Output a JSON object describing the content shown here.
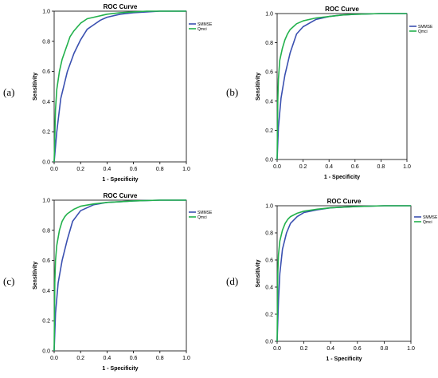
{
  "chart_data": [
    {
      "panel_label": "(a)",
      "type": "line",
      "title": "ROC Curve",
      "xlabel": "1 - Specificity",
      "ylabel": "Sensitivity",
      "xlim": [
        0.0,
        1.0
      ],
      "ylim": [
        0.0,
        1.0
      ],
      "x_ticks": [
        "0.0",
        "0.2",
        "0.4",
        "0.6",
        "0.8",
        "1.0"
      ],
      "y_ticks": [
        "0.0",
        "0.2",
        "0.4",
        "0.6",
        "0.8",
        "1.0"
      ],
      "legend_position": "top-right",
      "series": [
        {
          "name": "SMMSE",
          "color": "#3a50b0",
          "x": [
            0.0,
            0.02,
            0.05,
            0.1,
            0.15,
            0.2,
            0.25,
            0.3,
            0.35,
            0.4,
            0.5,
            0.6,
            0.7,
            0.8,
            1.0
          ],
          "y": [
            0.0,
            0.2,
            0.42,
            0.6,
            0.72,
            0.81,
            0.88,
            0.91,
            0.94,
            0.96,
            0.98,
            0.99,
            0.995,
            1.0,
            1.0
          ]
        },
        {
          "name": "Qmci",
          "color": "#22b14c",
          "x": [
            0.0,
            0.01,
            0.02,
            0.04,
            0.06,
            0.08,
            0.1,
            0.12,
            0.15,
            0.2,
            0.25,
            0.3,
            0.4,
            0.5,
            0.6,
            0.7,
            1.0
          ],
          "y": [
            0.0,
            0.35,
            0.48,
            0.6,
            0.68,
            0.73,
            0.78,
            0.83,
            0.87,
            0.92,
            0.95,
            0.96,
            0.98,
            0.99,
            0.995,
            1.0,
            1.0
          ]
        }
      ]
    },
    {
      "panel_label": "(b)",
      "type": "line",
      "title": "ROC Curve",
      "xlabel": "1 - Specificity",
      "ylabel": "Sensitivity",
      "xlim": [
        0.0,
        1.0
      ],
      "ylim": [
        0.0,
        1.0
      ],
      "x_ticks": [
        "0.0",
        "0.2",
        "0.4",
        "0.6",
        "0.8",
        "1.0"
      ],
      "y_ticks": [
        "0.0",
        "0.2",
        "0.4",
        "0.6",
        "0.8",
        "1.0"
      ],
      "legend_position": "top-right",
      "series": [
        {
          "name": "SMMSE",
          "color": "#3a50b0",
          "x": [
            0.0,
            0.01,
            0.03,
            0.06,
            0.1,
            0.15,
            0.2,
            0.3,
            0.4,
            0.5,
            0.6,
            0.8,
            1.0
          ],
          "y": [
            0.0,
            0.22,
            0.42,
            0.58,
            0.73,
            0.86,
            0.91,
            0.96,
            0.98,
            0.99,
            0.995,
            1.0,
            1.0
          ]
        },
        {
          "name": "Qmci",
          "color": "#22b14c",
          "x": [
            0.0,
            0.005,
            0.01,
            0.02,
            0.04,
            0.06,
            0.08,
            0.1,
            0.15,
            0.2,
            0.3,
            0.4,
            0.5,
            0.6,
            0.8,
            1.0
          ],
          "y": [
            0.0,
            0.4,
            0.55,
            0.68,
            0.76,
            0.82,
            0.86,
            0.89,
            0.93,
            0.95,
            0.97,
            0.98,
            0.99,
            0.995,
            1.0,
            1.0
          ]
        }
      ]
    },
    {
      "panel_label": "(c)",
      "type": "line",
      "title": "ROC Curve",
      "xlabel": "1 - Specificity",
      "ylabel": "Sensitivity",
      "xlim": [
        0.0,
        1.0
      ],
      "ylim": [
        0.0,
        1.0
      ],
      "x_ticks": [
        "0.0",
        "0.2",
        "0.4",
        "0.6",
        "0.8",
        "1.0"
      ],
      "y_ticks": [
        "0.0",
        "0.2",
        "0.4",
        "0.6",
        "0.8",
        "1.0"
      ],
      "legend_position": "right",
      "series": [
        {
          "name": "SMMSE",
          "color": "#3a50b0",
          "x": [
            0.0,
            0.01,
            0.03,
            0.06,
            0.1,
            0.14,
            0.2,
            0.3,
            0.4,
            0.5,
            0.6,
            0.8,
            1.0
          ],
          "y": [
            0.0,
            0.25,
            0.45,
            0.6,
            0.74,
            0.86,
            0.93,
            0.97,
            0.985,
            0.99,
            0.995,
            1.0,
            1.0
          ]
        },
        {
          "name": "Qmci",
          "color": "#22b14c",
          "x": [
            0.0,
            0.005,
            0.01,
            0.02,
            0.04,
            0.06,
            0.08,
            0.1,
            0.15,
            0.2,
            0.3,
            0.4,
            0.5,
            0.6,
            0.8,
            1.0
          ],
          "y": [
            0.0,
            0.45,
            0.6,
            0.7,
            0.8,
            0.86,
            0.89,
            0.91,
            0.94,
            0.96,
            0.975,
            0.985,
            0.99,
            0.995,
            1.0,
            1.0
          ]
        }
      ]
    },
    {
      "panel_label": "(d)",
      "type": "line",
      "title": "ROC Curve",
      "xlabel": "1 - Specificity",
      "ylabel": "Sensitivity",
      "xlim": [
        0.0,
        1.0
      ],
      "ylim": [
        0.0,
        1.0
      ],
      "x_ticks": [
        "0.0",
        "0.2",
        "0.4",
        "0.6",
        "0.8",
        "1.0"
      ],
      "y_ticks": [
        "0.0",
        "0.2",
        "0.4",
        "0.6",
        "0.8",
        "1.0"
      ],
      "legend_position": "outside-right",
      "series": [
        {
          "name": "SMMSE",
          "color": "#3a50b0",
          "x": [
            0.0,
            0.01,
            0.02,
            0.04,
            0.07,
            0.1,
            0.15,
            0.2,
            0.3,
            0.4,
            0.5,
            0.6,
            0.8,
            1.0
          ],
          "y": [
            0.0,
            0.3,
            0.5,
            0.68,
            0.8,
            0.87,
            0.92,
            0.95,
            0.97,
            0.985,
            0.99,
            0.995,
            1.0,
            1.0
          ]
        },
        {
          "name": "Qmci",
          "color": "#22b14c",
          "x": [
            0.0,
            0.005,
            0.01,
            0.02,
            0.04,
            0.06,
            0.08,
            0.1,
            0.15,
            0.2,
            0.3,
            0.4,
            0.5,
            0.6,
            0.8,
            1.0
          ],
          "y": [
            0.0,
            0.5,
            0.64,
            0.74,
            0.82,
            0.87,
            0.9,
            0.92,
            0.945,
            0.96,
            0.975,
            0.985,
            0.99,
            0.995,
            1.0,
            1.0
          ]
        }
      ]
    }
  ]
}
